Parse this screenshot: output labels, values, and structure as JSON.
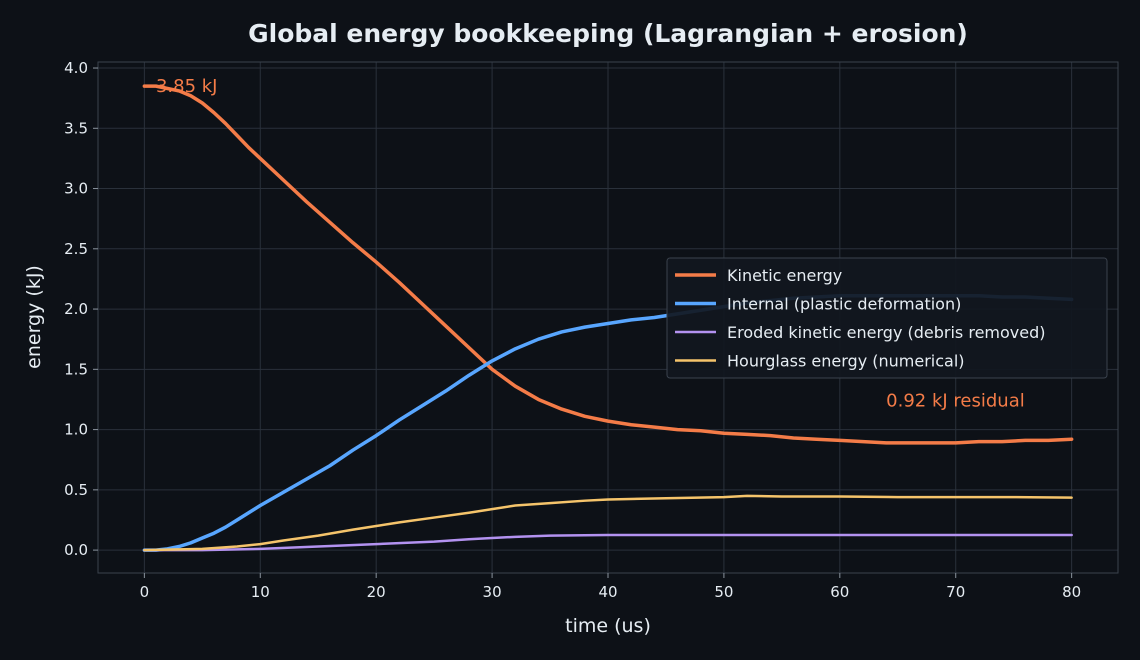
{
  "chart_data": {
    "type": "line",
    "title": "Global energy bookkeeping (Lagrangian + erosion)",
    "xlabel": "time (us)",
    "ylabel": "energy (kJ)",
    "xlim": [
      -4,
      84
    ],
    "ylim": [
      -0.19,
      4.05
    ],
    "xticks": [
      0,
      10,
      20,
      30,
      40,
      50,
      60,
      70,
      80
    ],
    "yticks": [
      0.0,
      0.5,
      1.0,
      1.5,
      2.0,
      2.5,
      3.0,
      3.5,
      4.0
    ],
    "xtick_labels": [
      "0",
      "10",
      "20",
      "30",
      "40",
      "50",
      "60",
      "70",
      "80"
    ],
    "ytick_labels": [
      "0.0",
      "0.5",
      "1.0",
      "1.5",
      "2.0",
      "2.5",
      "3.0",
      "3.5",
      "4.0"
    ],
    "grid": true,
    "legend_position": "center-right",
    "colors": {
      "background": "#0d1117",
      "grid": "#2a313b",
      "text": "#e6edf3"
    },
    "series": [
      {
        "name": "Kinetic energy",
        "color": "#f47c48",
        "points": [
          [
            0,
            3.85
          ],
          [
            1,
            3.85
          ],
          [
            2,
            3.83
          ],
          [
            3,
            3.81
          ],
          [
            4,
            3.77
          ],
          [
            5,
            3.71
          ],
          [
            6,
            3.63
          ],
          [
            7,
            3.54
          ],
          [
            8,
            3.44
          ],
          [
            9,
            3.34
          ],
          [
            10,
            3.25
          ],
          [
            12,
            3.07
          ],
          [
            14,
            2.89
          ],
          [
            16,
            2.72
          ],
          [
            18,
            2.55
          ],
          [
            20,
            2.39
          ],
          [
            22,
            2.22
          ],
          [
            24,
            2.04
          ],
          [
            26,
            1.86
          ],
          [
            28,
            1.68
          ],
          [
            30,
            1.5
          ],
          [
            31,
            1.43
          ],
          [
            32,
            1.36
          ],
          [
            34,
            1.25
          ],
          [
            36,
            1.17
          ],
          [
            38,
            1.11
          ],
          [
            40,
            1.07
          ],
          [
            42,
            1.04
          ],
          [
            44,
            1.02
          ],
          [
            46,
            1.0
          ],
          [
            48,
            0.99
          ],
          [
            50,
            0.97
          ],
          [
            52,
            0.96
          ],
          [
            54,
            0.95
          ],
          [
            56,
            0.93
          ],
          [
            58,
            0.92
          ],
          [
            60,
            0.91
          ],
          [
            62,
            0.9
          ],
          [
            64,
            0.89
          ],
          [
            66,
            0.89
          ],
          [
            68,
            0.89
          ],
          [
            70,
            0.89
          ],
          [
            72,
            0.9
          ],
          [
            74,
            0.9
          ],
          [
            76,
            0.91
          ],
          [
            78,
            0.91
          ],
          [
            80,
            0.92
          ]
        ]
      },
      {
        "name": "Internal (plastic deformation)",
        "color": "#58a6ff",
        "points": [
          [
            0,
            0.0
          ],
          [
            1,
            0.0
          ],
          [
            2,
            0.01
          ],
          [
            3,
            0.03
          ],
          [
            4,
            0.06
          ],
          [
            5,
            0.1
          ],
          [
            6,
            0.14
          ],
          [
            7,
            0.19
          ],
          [
            8,
            0.25
          ],
          [
            9,
            0.31
          ],
          [
            10,
            0.37
          ],
          [
            12,
            0.48
          ],
          [
            14,
            0.59
          ],
          [
            16,
            0.7
          ],
          [
            18,
            0.83
          ],
          [
            20,
            0.95
          ],
          [
            22,
            1.08
          ],
          [
            24,
            1.2
          ],
          [
            26,
            1.32
          ],
          [
            28,
            1.45
          ],
          [
            30,
            1.57
          ],
          [
            32,
            1.67
          ],
          [
            34,
            1.75
          ],
          [
            36,
            1.81
          ],
          [
            38,
            1.85
          ],
          [
            40,
            1.88
          ],
          [
            42,
            1.91
          ],
          [
            44,
            1.93
          ],
          [
            46,
            1.96
          ],
          [
            48,
            1.99
          ],
          [
            50,
            2.02
          ],
          [
            52,
            2.05
          ],
          [
            54,
            2.07
          ],
          [
            56,
            2.09
          ],
          [
            58,
            2.1
          ],
          [
            60,
            2.11
          ],
          [
            62,
            2.11
          ],
          [
            64,
            2.11
          ],
          [
            66,
            2.11
          ],
          [
            68,
            2.11
          ],
          [
            70,
            2.11
          ],
          [
            72,
            2.11
          ],
          [
            74,
            2.1
          ],
          [
            76,
            2.1
          ],
          [
            78,
            2.09
          ],
          [
            80,
            2.08
          ]
        ]
      },
      {
        "name": "Eroded kinetic energy (debris removed)",
        "color": "#b392f0",
        "points": [
          [
            0,
            0.0
          ],
          [
            5,
            0.0
          ],
          [
            10,
            0.01
          ],
          [
            15,
            0.03
          ],
          [
            20,
            0.05
          ],
          [
            25,
            0.07
          ],
          [
            28,
            0.09
          ],
          [
            30,
            0.1
          ],
          [
            32,
            0.11
          ],
          [
            35,
            0.12
          ],
          [
            40,
            0.125
          ],
          [
            50,
            0.125
          ],
          [
            60,
            0.125
          ],
          [
            70,
            0.125
          ],
          [
            80,
            0.125
          ]
        ]
      },
      {
        "name": "Hourglass energy (numerical)",
        "color": "#f5c46b",
        "points": [
          [
            0,
            0.0
          ],
          [
            5,
            0.01
          ],
          [
            8,
            0.03
          ],
          [
            10,
            0.05
          ],
          [
            12,
            0.08
          ],
          [
            15,
            0.12
          ],
          [
            18,
            0.17
          ],
          [
            20,
            0.2
          ],
          [
            22,
            0.23
          ],
          [
            25,
            0.27
          ],
          [
            28,
            0.31
          ],
          [
            30,
            0.34
          ],
          [
            32,
            0.37
          ],
          [
            35,
            0.39
          ],
          [
            38,
            0.41
          ],
          [
            40,
            0.42
          ],
          [
            45,
            0.43
          ],
          [
            50,
            0.44
          ],
          [
            52,
            0.45
          ],
          [
            55,
            0.445
          ],
          [
            60,
            0.445
          ],
          [
            65,
            0.44
          ],
          [
            70,
            0.44
          ],
          [
            75,
            0.44
          ],
          [
            80,
            0.435
          ]
        ]
      }
    ],
    "annotations": [
      {
        "text": "3.85 kJ",
        "x": 1,
        "y": 3.85,
        "color": "#f47c48"
      },
      {
        "text": "0.92 kJ residual",
        "x": 64,
        "y": 1.24,
        "color": "#f47c48"
      }
    ]
  }
}
